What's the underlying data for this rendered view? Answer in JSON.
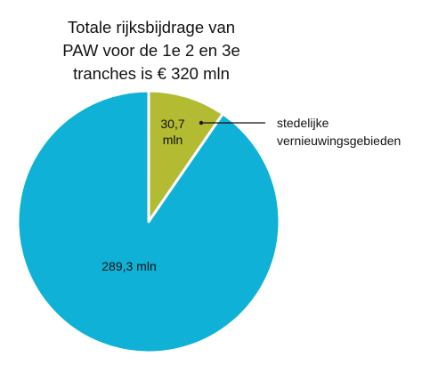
{
  "chart_data": {
    "type": "pie",
    "title_lines": [
      "Totale rijksbijdrage van",
      "PAW voor de 1e 2 en 3e",
      "tranches is € 320 mln"
    ],
    "slices": [
      {
        "value": 30.7,
        "color": "#b2bb32",
        "label_lines": [
          "30,7",
          "mln"
        ],
        "callout_lines": [
          "stedelijke",
          "vernieuwingsgebieden"
        ]
      },
      {
        "value": 289.3,
        "color": "#0fb1d6",
        "label_lines": [
          "289,3 mln"
        ]
      }
    ],
    "unit": "mln",
    "total": 320
  }
}
